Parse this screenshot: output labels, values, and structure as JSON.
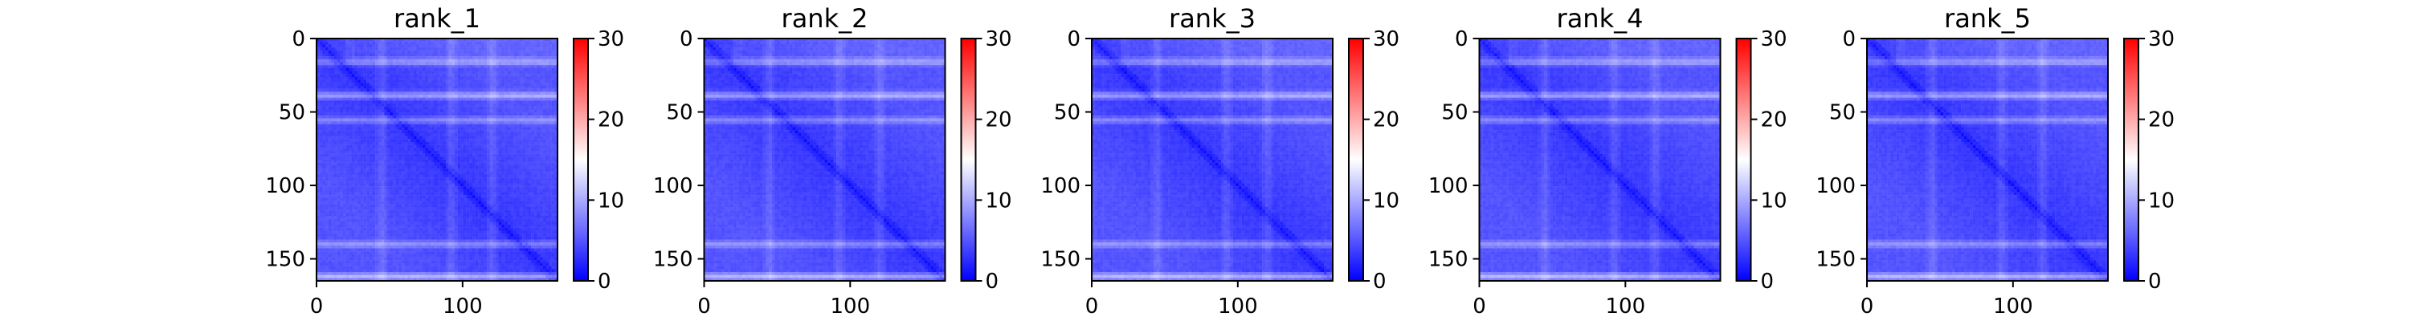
{
  "chart_data": [
    {
      "type": "heatmap",
      "title": "rank_1",
      "xlabel": "",
      "ylabel": "",
      "size": 165,
      "xlim": [
        0,
        165
      ],
      "ylim": [
        165,
        0
      ],
      "x_ticks": [
        0,
        100
      ],
      "y_ticks": [
        0,
        50,
        100,
        150
      ],
      "colorbar": {
        "min": 0,
        "max": 30,
        "ticks": [
          0,
          10,
          20,
          30
        ],
        "colors": [
          "#0000ff",
          "#ffffff",
          "#ff0000"
        ]
      },
      "value_range_estimated": [
        0,
        13
      ],
      "pattern": "low near diagonal; brighter horizontal bands near rows 15, 38, 55, 140, 162"
    },
    {
      "type": "heatmap",
      "title": "rank_2",
      "xlabel": "",
      "ylabel": "",
      "size": 165,
      "xlim": [
        0,
        165
      ],
      "ylim": [
        165,
        0
      ],
      "x_ticks": [
        0,
        100
      ],
      "y_ticks": [
        0,
        50,
        100,
        150
      ],
      "colorbar": {
        "min": 0,
        "max": 30,
        "ticks": [
          0,
          10,
          20,
          30
        ],
        "colors": [
          "#0000ff",
          "#ffffff",
          "#ff0000"
        ]
      },
      "value_range_estimated": [
        0,
        13
      ],
      "pattern": "low near diagonal; brighter horizontal bands near rows 15, 38, 55, 140, 162"
    },
    {
      "type": "heatmap",
      "title": "rank_3",
      "xlabel": "",
      "ylabel": "",
      "size": 165,
      "xlim": [
        0,
        165
      ],
      "ylim": [
        165,
        0
      ],
      "x_ticks": [
        0,
        100
      ],
      "y_ticks": [
        0,
        50,
        100,
        150
      ],
      "colorbar": {
        "min": 0,
        "max": 30,
        "ticks": [
          0,
          10,
          20,
          30
        ],
        "colors": [
          "#0000ff",
          "#ffffff",
          "#ff0000"
        ]
      },
      "value_range_estimated": [
        0,
        13
      ],
      "pattern": "low near diagonal; brighter horizontal bands near rows 15, 38, 55, 140, 162"
    },
    {
      "type": "heatmap",
      "title": "rank_4",
      "xlabel": "",
      "ylabel": "",
      "size": 165,
      "xlim": [
        0,
        165
      ],
      "ylim": [
        165,
        0
      ],
      "x_ticks": [
        0,
        100
      ],
      "y_ticks": [
        0,
        50,
        100,
        150
      ],
      "colorbar": {
        "min": 0,
        "max": 30,
        "ticks": [
          0,
          10,
          20,
          30
        ],
        "colors": [
          "#0000ff",
          "#ffffff",
          "#ff0000"
        ]
      },
      "value_range_estimated": [
        0,
        13
      ],
      "pattern": "low near diagonal; brighter horizontal bands near rows 15, 38, 55, 140, 162"
    },
    {
      "type": "heatmap",
      "title": "rank_5",
      "xlabel": "",
      "ylabel": "",
      "size": 165,
      "xlim": [
        0,
        165
      ],
      "ylim": [
        165,
        0
      ],
      "x_ticks": [
        0,
        100
      ],
      "y_ticks": [
        0,
        50,
        100,
        150
      ],
      "colorbar": {
        "min": 0,
        "max": 30,
        "ticks": [
          0,
          10,
          20,
          30
        ],
        "colors": [
          "#0000ff",
          "#ffffff",
          "#ff0000"
        ]
      },
      "value_range_estimated": [
        0,
        13
      ],
      "pattern": "low near diagonal; brighter horizontal bands near rows 15, 38, 55, 140, 162"
    }
  ]
}
